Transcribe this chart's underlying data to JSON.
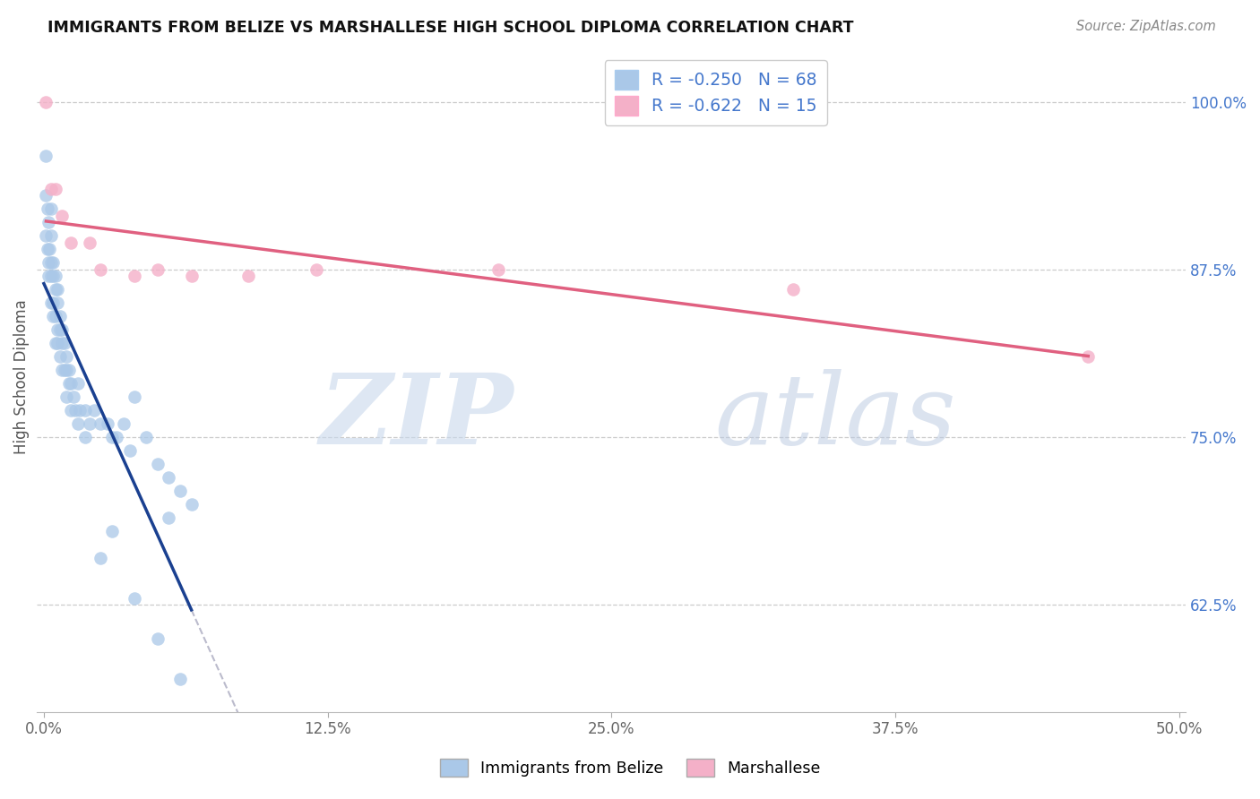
{
  "title": "IMMIGRANTS FROM BELIZE VS MARSHALLESE HIGH SCHOOL DIPLOMA CORRELATION CHART",
  "source": "Source: ZipAtlas.com",
  "ylabel": "High School Diploma",
  "xlim": [
    -0.003,
    0.503
  ],
  "ylim": [
    0.545,
    1.045
  ],
  "xtick_vals": [
    0.0,
    0.125,
    0.25,
    0.375,
    0.5
  ],
  "xtick_labels": [
    "0.0%",
    "12.5%",
    "25.0%",
    "37.5%",
    "50.0%"
  ],
  "ytick_vals": [
    0.625,
    0.75,
    0.875,
    1.0
  ],
  "ytick_labels": [
    "62.5%",
    "75.0%",
    "87.5%",
    "100.0%"
  ],
  "belize_R": -0.25,
  "belize_N": 68,
  "marsh_R": -0.622,
  "marsh_N": 15,
  "belize_dot_color": "#aac8e8",
  "marsh_dot_color": "#f4b0c8",
  "belize_line_color": "#1a4090",
  "marsh_line_color": "#e06080",
  "dash_color": "#bbbbcc",
  "grid_color": "#cccccc",
  "bg_color": "#ffffff",
  "legend_label_belize": "Immigrants from Belize",
  "legend_label_marsh": "Marshallese",
  "title_color": "#111111",
  "right_tick_color": "#4477cc",
  "legend_text_color": "#4477cc",
  "source_color": "#888888",
  "belize_x": [
    0.001,
    0.001,
    0.001,
    0.0015,
    0.0015,
    0.002,
    0.002,
    0.002,
    0.0025,
    0.003,
    0.003,
    0.003,
    0.003,
    0.003,
    0.004,
    0.004,
    0.004,
    0.004,
    0.005,
    0.005,
    0.005,
    0.005,
    0.006,
    0.006,
    0.006,
    0.006,
    0.007,
    0.007,
    0.007,
    0.008,
    0.008,
    0.008,
    0.009,
    0.009,
    0.01,
    0.01,
    0.01,
    0.011,
    0.011,
    0.012,
    0.012,
    0.013,
    0.014,
    0.015,
    0.015,
    0.016,
    0.018,
    0.018,
    0.02,
    0.022,
    0.025,
    0.028,
    0.03,
    0.032,
    0.035,
    0.038,
    0.04,
    0.045,
    0.05,
    0.055,
    0.06,
    0.065,
    0.055,
    0.03,
    0.025,
    0.04,
    0.05,
    0.06
  ],
  "belize_y": [
    0.96,
    0.93,
    0.9,
    0.92,
    0.89,
    0.91,
    0.88,
    0.87,
    0.89,
    0.92,
    0.9,
    0.88,
    0.87,
    0.85,
    0.88,
    0.87,
    0.85,
    0.84,
    0.87,
    0.86,
    0.84,
    0.82,
    0.86,
    0.85,
    0.83,
    0.82,
    0.84,
    0.83,
    0.81,
    0.83,
    0.82,
    0.8,
    0.82,
    0.8,
    0.81,
    0.8,
    0.78,
    0.8,
    0.79,
    0.79,
    0.77,
    0.78,
    0.77,
    0.79,
    0.76,
    0.77,
    0.77,
    0.75,
    0.76,
    0.77,
    0.76,
    0.76,
    0.75,
    0.75,
    0.76,
    0.74,
    0.78,
    0.75,
    0.73,
    0.72,
    0.71,
    0.7,
    0.69,
    0.68,
    0.66,
    0.63,
    0.6,
    0.57
  ],
  "marsh_x": [
    0.001,
    0.003,
    0.005,
    0.008,
    0.012,
    0.02,
    0.025,
    0.04,
    0.05,
    0.065,
    0.09,
    0.12,
    0.2,
    0.33,
    0.46
  ],
  "marsh_y": [
    1.0,
    0.935,
    0.935,
    0.915,
    0.895,
    0.895,
    0.875,
    0.87,
    0.875,
    0.87,
    0.87,
    0.875,
    0.875,
    0.86,
    0.81
  ],
  "watermark_zip": "ZIP",
  "watermark_atlas": "atlas"
}
